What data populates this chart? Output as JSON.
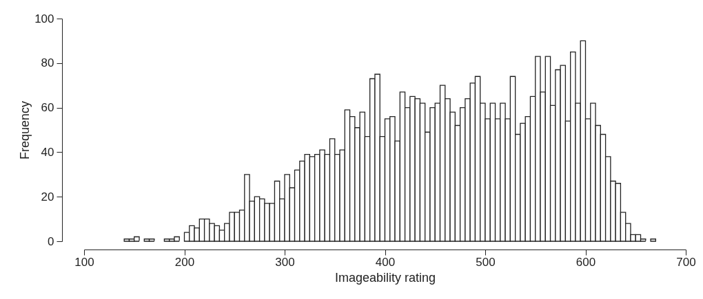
{
  "chart_data": {
    "type": "histogram",
    "xlabel": "Imageability rating",
    "ylabel": "Frequency",
    "bins": [
      140,
      145,
      150,
      155,
      160,
      165,
      170,
      175,
      180,
      185,
      190,
      195,
      200,
      205,
      210,
      215,
      220,
      225,
      230,
      235,
      240,
      245,
      250,
      255,
      260,
      265,
      270,
      275,
      280,
      285,
      290,
      295,
      300,
      305,
      310,
      315,
      320,
      325,
      330,
      335,
      340,
      345,
      350,
      355,
      360,
      365,
      370,
      375,
      380,
      385,
      390,
      395,
      400,
      405,
      410,
      415,
      420,
      425,
      430,
      435,
      440,
      445,
      450,
      455,
      460,
      465,
      470,
      475,
      480,
      485,
      490,
      495,
      500,
      505,
      510,
      515,
      520,
      525,
      530,
      535,
      540,
      545,
      550,
      555,
      560,
      565,
      570,
      575,
      580,
      585,
      590,
      595,
      600,
      605,
      610,
      615,
      620,
      625,
      630,
      635,
      640,
      645,
      650,
      655,
      660,
      665,
      670
    ],
    "values": [
      1,
      1,
      2,
      0,
      1,
      1,
      0,
      0,
      1,
      1,
      2,
      0,
      4,
      7,
      6,
      10,
      10,
      8,
      7,
      5,
      8,
      13,
      13,
      14,
      30,
      18,
      20,
      19,
      17,
      17,
      27,
      19,
      30,
      24,
      32,
      36,
      39,
      38,
      39,
      41,
      39,
      46,
      39,
      41,
      59,
      56,
      51,
      58,
      47,
      73,
      75,
      47,
      55,
      56,
      45,
      67,
      60,
      65,
      64,
      62,
      49,
      60,
      62,
      70,
      64,
      58,
      52,
      60,
      64,
      71,
      74,
      62,
      55,
      62,
      55,
      62,
      55,
      74,
      48,
      53,
      56,
      65,
      83,
      67,
      83,
      61,
      77,
      79,
      54,
      85,
      62,
      90,
      55,
      62,
      52,
      48,
      38,
      27,
      26,
      13,
      8,
      3,
      3,
      1,
      0,
      1
    ],
    "color": "#ffffff",
    "xlim": [
      100,
      700
    ],
    "xticks": [
      100,
      200,
      300,
      400,
      500,
      600,
      700
    ],
    "ylim": [
      0,
      100
    ],
    "yticks": [
      0,
      20,
      40,
      60,
      80,
      100
    ],
    "grid": false
  }
}
